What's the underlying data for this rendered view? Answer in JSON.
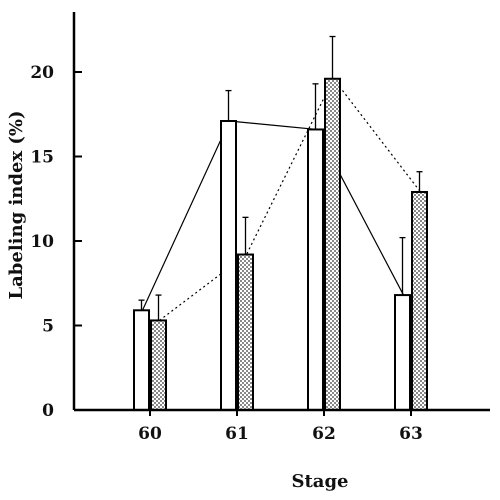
{
  "chart_data": {
    "type": "bar",
    "title": "",
    "xlabel": "Stage",
    "ylabel": "Labeling index  (%)",
    "categories": [
      "60",
      "61",
      "62",
      "63"
    ],
    "ylim": [
      0,
      24
    ],
    "yticks": [
      0,
      5,
      10,
      15,
      20
    ],
    "grid": false,
    "legend": "none",
    "series": [
      {
        "fill": "#ffffff",
        "pattern": "none",
        "line_style": "solid",
        "values": [
          5.9,
          17.1,
          16.6,
          6.8
        ],
        "errors": [
          0.6,
          1.8,
          2.7,
          3.4
        ]
      },
      {
        "fill": "#d9d9d9",
        "pattern": "stipple",
        "line_style": "dotted",
        "values": [
          5.3,
          9.2,
          19.6,
          12.9
        ],
        "errors": [
          1.5,
          2.2,
          2.5,
          1.2
        ]
      }
    ],
    "connecting_lines": true
  }
}
